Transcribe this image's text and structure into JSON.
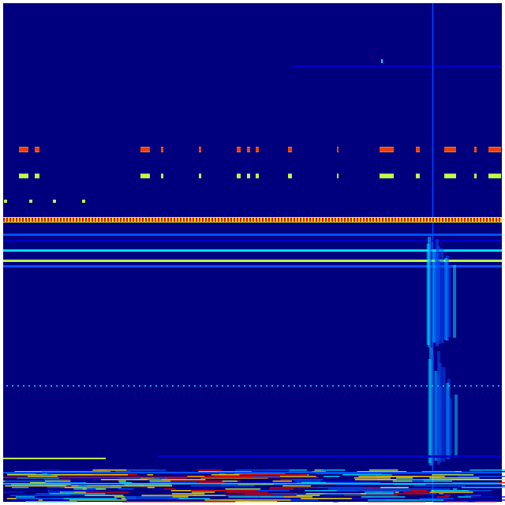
{
  "image": {
    "colormap": "jet",
    "colors": {
      "background": "#00007f",
      "low": "#0000c8",
      "mid_blue": "#0050ff",
      "cyan": "#00d8ff",
      "green_yellow": "#b8ff48",
      "yellow": "#ffe000",
      "orange": "#ff8000",
      "red": "#e00000"
    }
  }
}
